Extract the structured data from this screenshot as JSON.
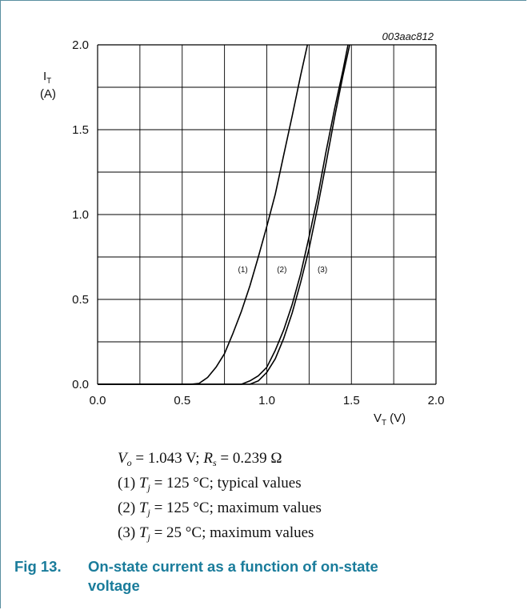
{
  "chart_data": {
    "type": "line",
    "reference": "003aac812",
    "ylabel_main": "I",
    "ylabel_sub": "T",
    "ylabel_unit": "(A)",
    "xlabel_main": "V",
    "xlabel_sub": "T",
    "xlabel_unit": "(V)",
    "xlim": [
      0,
      2
    ],
    "ylim": [
      0,
      2
    ],
    "x_ticks": [
      "0.0",
      "0.5",
      "1.0",
      "1.5",
      "2.0"
    ],
    "y_ticks": [
      "0.0",
      "0.5",
      "1.0",
      "1.5",
      "2.0"
    ],
    "grid": true,
    "series": [
      {
        "name": "(1)",
        "points": [
          [
            0.0,
            0.0
          ],
          [
            0.55,
            0.0
          ],
          [
            0.6,
            0.005
          ],
          [
            0.65,
            0.04
          ],
          [
            0.7,
            0.1
          ],
          [
            0.75,
            0.18
          ],
          [
            0.8,
            0.3
          ],
          [
            0.85,
            0.43
          ],
          [
            0.9,
            0.58
          ],
          [
            0.95,
            0.75
          ],
          [
            1.0,
            0.93
          ],
          [
            1.05,
            1.12
          ],
          [
            1.1,
            1.35
          ],
          [
            1.15,
            1.58
          ],
          [
            1.2,
            1.82
          ],
          [
            1.24,
            2.0
          ]
        ]
      },
      {
        "name": "(2)",
        "points": [
          [
            0.0,
            0.0
          ],
          [
            0.85,
            0.0
          ],
          [
            0.9,
            0.02
          ],
          [
            0.95,
            0.05
          ],
          [
            1.0,
            0.1
          ],
          [
            1.05,
            0.2
          ],
          [
            1.1,
            0.32
          ],
          [
            1.15,
            0.47
          ],
          [
            1.2,
            0.65
          ],
          [
            1.25,
            0.87
          ],
          [
            1.3,
            1.1
          ],
          [
            1.35,
            1.37
          ],
          [
            1.4,
            1.62
          ],
          [
            1.45,
            1.85
          ],
          [
            1.48,
            2.0
          ]
        ]
      },
      {
        "name": "(3)",
        "points": [
          [
            0.0,
            0.0
          ],
          [
            0.9,
            0.0
          ],
          [
            0.95,
            0.02
          ],
          [
            1.0,
            0.07
          ],
          [
            1.05,
            0.15
          ],
          [
            1.1,
            0.27
          ],
          [
            1.15,
            0.42
          ],
          [
            1.2,
            0.6
          ],
          [
            1.25,
            0.8
          ],
          [
            1.3,
            1.04
          ],
          [
            1.35,
            1.3
          ],
          [
            1.4,
            1.57
          ],
          [
            1.45,
            1.82
          ],
          [
            1.49,
            2.0
          ]
        ]
      }
    ],
    "curve_labels": [
      {
        "text": "(1)",
        "x": 0.83,
        "y": 0.66
      },
      {
        "text": "(2)",
        "x": 1.06,
        "y": 0.66
      },
      {
        "text": "(3)",
        "x": 1.3,
        "y": 0.66
      }
    ]
  },
  "notes": {
    "line1": {
      "v": "V",
      "vsub": "o",
      "eq1": " = 1.043 V; ",
      "r": "R",
      "rsub": "s",
      "eq2": " = 0.239 Ω"
    },
    "line2": {
      "prefix": "(1) ",
      "t": "T",
      "tsub": "j",
      "rest": " = 125 °C; typical values"
    },
    "line3": {
      "prefix": "(2) ",
      "t": "T",
      "tsub": "j",
      "rest": " = 125 °C; maximum values"
    },
    "line4": {
      "prefix": "(3) ",
      "t": "T",
      "tsub": "j",
      "rest": " = 25 °C; maximum values"
    }
  },
  "figure": {
    "number": "Fig 13.",
    "title_line1": "On-state current as a function of on-state",
    "title_line2": "voltage"
  },
  "colors": {
    "frame": "#5a8fa0",
    "title": "#1a7c9b",
    "grid": "#000000",
    "curve": "#000000"
  }
}
